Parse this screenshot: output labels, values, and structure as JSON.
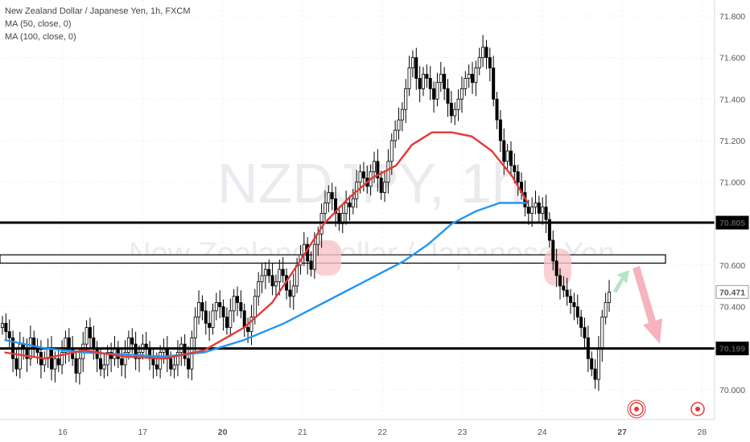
{
  "legend": {
    "symbol": "New Zealand Dollar / Japanese Yen, 1h, FXCM",
    "ma50": "MA (50, close, 0)",
    "ma100": "MA (100, close, 0)"
  },
  "watermark": {
    "ticker": "NZDJPY, 1h",
    "name": "New Zealand Dollar / Japanese Yen"
  },
  "colors": {
    "ma50": "#e53935",
    "ma100": "#2196f3",
    "candle": "#000000",
    "up_arrow": "#b9e3c6",
    "down_arrow": "#f7b3bd",
    "highlight": "#f8c4c8",
    "alert": "#e53935"
  },
  "chart_data": {
    "type": "candlestick",
    "title": "New Zealand Dollar / Japanese Yen, 1h, FXCM",
    "y_ticks": [
      70.0,
      70.2,
      70.4,
      70.6,
      70.8,
      71.0,
      71.2,
      71.4,
      71.6,
      71.8
    ],
    "y_tick_labels": [
      "70.000",
      "70.200",
      "70.400",
      "70.600",
      "70.800",
      "71.000",
      "71.200",
      "71.400",
      "71.600",
      "71.800"
    ],
    "x_labels": [
      {
        "label": "16",
        "day": 0.0
      },
      {
        "label": "17",
        "day": 1.0
      },
      {
        "label": "20",
        "day": 2.0
      },
      {
        "label": "21",
        "day": 3.0
      },
      {
        "label": "22",
        "day": 4.0
      },
      {
        "label": "23",
        "day": 5.0
      },
      {
        "label": "24",
        "day": 6.0
      },
      {
        "label": "27",
        "day": 7.0
      },
      {
        "label": "28",
        "day": 8.0
      }
    ],
    "price_labels": [
      {
        "value": 70.805,
        "text": "70.805",
        "style": "dark"
      },
      {
        "value": 70.471,
        "text": "70.471",
        "style": "light"
      },
      {
        "value": 70.199,
        "text": "70.199",
        "style": "dark"
      }
    ],
    "horizontal_lines": [
      70.805,
      70.199
    ],
    "zone": {
      "from": 70.61,
      "to": 70.65
    },
    "candles_close": [
      70.32,
      70.28,
      70.25,
      70.15,
      70.1,
      70.22,
      70.2,
      70.15,
      70.25,
      70.2,
      70.18,
      70.12,
      70.15,
      70.2,
      70.1,
      70.15,
      70.12,
      70.18,
      70.25,
      70.2,
      70.15,
      70.08,
      70.15,
      70.22,
      70.3,
      70.25,
      70.2,
      70.15,
      70.1,
      70.12,
      70.18,
      70.15,
      70.2,
      70.15,
      70.12,
      70.18,
      70.25,
      70.22,
      70.15,
      70.18,
      70.22,
      70.2,
      70.15,
      70.12,
      70.1,
      70.18,
      70.2,
      70.15,
      70.1,
      70.12,
      70.18,
      70.22,
      70.15,
      70.1,
      70.25,
      70.35,
      70.42,
      70.38,
      70.32,
      70.3,
      70.38,
      70.42,
      70.4,
      70.35,
      70.3,
      70.38,
      70.45,
      70.42,
      70.38,
      70.3,
      70.28,
      70.35,
      70.45,
      70.52,
      70.55,
      70.58,
      70.55,
      70.5,
      70.52,
      70.58,
      70.55,
      70.48,
      70.45,
      70.5,
      70.6,
      70.65,
      70.7,
      70.62,
      70.58,
      70.7,
      70.75,
      70.85,
      70.9,
      70.95,
      70.92,
      70.85,
      70.8,
      70.85,
      70.9,
      70.88,
      70.92,
      71.0,
      71.05,
      71.02,
      70.98,
      71.05,
      71.1,
      71.02,
      70.95,
      71.0,
      71.1,
      71.2,
      71.25,
      71.3,
      71.35,
      71.45,
      71.55,
      71.6,
      71.5,
      71.45,
      71.52,
      71.5,
      71.45,
      71.4,
      71.48,
      71.52,
      71.45,
      71.38,
      71.32,
      71.35,
      71.4,
      71.45,
      71.5,
      71.52,
      71.48,
      71.55,
      71.6,
      71.65,
      71.6,
      71.55,
      71.4,
      71.3,
      71.2,
      71.1,
      71.15,
      71.08,
      71.05,
      71.0,
      70.95,
      70.88,
      70.85,
      70.88,
      70.9,
      70.85,
      70.88,
      70.82,
      70.72,
      70.62,
      70.55,
      70.5,
      70.48,
      70.45,
      70.42,
      70.4,
      70.35,
      70.3,
      70.25,
      70.15,
      70.1,
      70.05,
      70.2,
      70.35,
      70.42,
      70.47
    ],
    "ma50": [
      [
        0,
        70.18
      ],
      [
        0.5,
        70.15
      ],
      [
        1,
        70.19
      ],
      [
        1.5,
        70.16
      ],
      [
        2,
        70.15
      ],
      [
        2.5,
        70.19
      ],
      [
        3,
        70.3
      ],
      [
        3.35,
        70.42
      ],
      [
        3.7,
        70.62
      ],
      [
        4.0,
        70.8
      ],
      [
        4.3,
        70.92
      ],
      [
        4.6,
        71.02
      ],
      [
        4.9,
        71.08
      ],
      [
        5.1,
        71.18
      ],
      [
        5.35,
        71.24
      ],
      [
        5.6,
        71.24
      ],
      [
        5.85,
        71.22
      ],
      [
        6.1,
        71.15
      ],
      [
        6.35,
        71.03
      ],
      [
        6.55,
        70.9
      ]
    ],
    "ma100": [
      [
        0,
        70.24
      ],
      [
        0.5,
        70.2
      ],
      [
        1,
        70.18
      ],
      [
        1.5,
        70.17
      ],
      [
        2,
        70.16
      ],
      [
        2.5,
        70.18
      ],
      [
        3,
        70.24
      ],
      [
        3.5,
        70.32
      ],
      [
        4.0,
        70.42
      ],
      [
        4.5,
        70.52
      ],
      [
        5.0,
        70.62
      ],
      [
        5.3,
        70.7
      ],
      [
        5.6,
        70.8
      ],
      [
        5.9,
        70.86
      ],
      [
        6.2,
        70.9
      ],
      [
        6.55,
        70.9
      ]
    ]
  }
}
